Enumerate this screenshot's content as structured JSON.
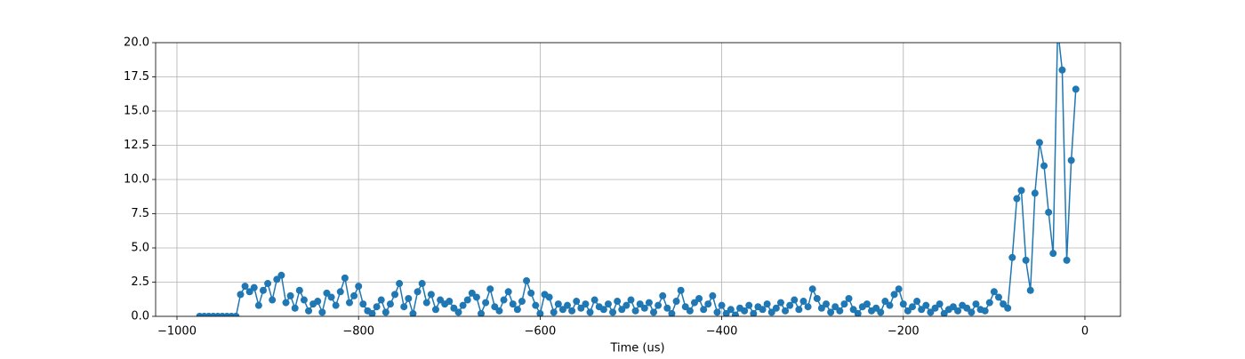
{
  "chart_data": {
    "type": "line",
    "xlabel": "Time (us)",
    "xlim": [
      -1023.5,
      39.2
    ],
    "ylim": [
      0,
      20
    ],
    "xticks": [
      {
        "value": -1000,
        "label": "−1000"
      },
      {
        "value": -800,
        "label": "−800"
      },
      {
        "value": -600,
        "label": "−600"
      },
      {
        "value": -400,
        "label": "−400"
      },
      {
        "value": -200,
        "label": "−200"
      },
      0
    ],
    "yticks": [
      {
        "value": 0,
        "label": "0.0"
      },
      {
        "value": 2.5,
        "label": "2.5"
      },
      {
        "value": 5,
        "label": "5.0"
      },
      {
        "value": 7.5,
        "label": "7.5"
      },
      {
        "value": 10,
        "label": "10.0"
      },
      {
        "value": 12.5,
        "label": "12.5"
      },
      {
        "value": 15,
        "label": "15.0"
      },
      {
        "value": 17.5,
        "label": "17.5"
      },
      {
        "value": 20,
        "label": "20.0"
      }
    ],
    "grid": true,
    "x": [
      -975,
      -970,
      -965,
      -960,
      -955,
      -950,
      -945,
      -940,
      -935,
      -930,
      -925,
      -920,
      -915,
      -910,
      -905,
      -900,
      -895,
      -890,
      -885,
      -880,
      -875,
      -870,
      -865,
      -860,
      -855,
      -850,
      -845,
      -840,
      -835,
      -830,
      -825,
      -820,
      -815,
      -810,
      -805,
      -800,
      -795,
      -790,
      -785,
      -780,
      -775,
      -770,
      -765,
      -760,
      -755,
      -750,
      -745,
      -740,
      -735,
      -730,
      -725,
      -720,
      -715,
      -710,
      -705,
      -700,
      -695,
      -690,
      -685,
      -680,
      -675,
      -670,
      -665,
      -660,
      -655,
      -650,
      -645,
      -640,
      -635,
      -630,
      -625,
      -620,
      -615,
      -610,
      -605,
      -600,
      -595,
      -590,
      -585,
      -580,
      -575,
      -570,
      -565,
      -560,
      -555,
      -550,
      -545,
      -540,
      -535,
      -530,
      -525,
      -520,
      -515,
      -510,
      -505,
      -500,
      -495,
      -490,
      -485,
      -480,
      -475,
      -470,
      -465,
      -460,
      -455,
      -450,
      -445,
      -440,
      -435,
      -430,
      -425,
      -420,
      -415,
      -410,
      -405,
      -400,
      -395,
      -390,
      -385,
      -380,
      -375,
      -370,
      -365,
      -360,
      -355,
      -350,
      -345,
      -340,
      -335,
      -330,
      -325,
      -320,
      -315,
      -310,
      -305,
      -300,
      -295,
      -290,
      -285,
      -280,
      -275,
      -270,
      -265,
      -260,
      -255,
      -250,
      -245,
      -240,
      -235,
      -230,
      -225,
      -220,
      -215,
      -210,
      -205,
      -200,
      -195,
      -190,
      -185,
      -180,
      -175,
      -170,
      -165,
      -160,
      -155,
      -150,
      -145,
      -140,
      -135,
      -130,
      -125,
      -120,
      -115,
      -110,
      -105,
      -100,
      -95,
      -90,
      -85,
      -80,
      -75,
      -70,
      -65,
      -60,
      -55,
      -50,
      -45,
      -40,
      -35,
      -30,
      -25,
      -20,
      -15,
      -10
    ],
    "series": [
      {
        "color": "#1f77b4",
        "values": [
          0,
          0,
          0,
          0,
          0,
          0,
          0,
          0,
          0,
          1.6,
          2.2,
          1.8,
          2.1,
          0.8,
          1.9,
          2.4,
          1.2,
          2.7,
          3.0,
          1.0,
          1.5,
          0.6,
          1.9,
          1.2,
          0.4,
          0.9,
          1.1,
          0.3,
          1.7,
          1.4,
          0.8,
          1.8,
          2.8,
          1.0,
          1.5,
          2.2,
          0.9,
          0.4,
          0.2,
          0.7,
          1.2,
          0.3,
          0.9,
          1.6,
          2.4,
          0.7,
          1.3,
          0.2,
          1.8,
          2.4,
          1.0,
          1.6,
          0.5,
          1.2,
          0.9,
          1.1,
          0.6,
          0.3,
          0.8,
          1.2,
          1.7,
          1.4,
          0.2,
          1.0,
          2.0,
          0.7,
          0.4,
          1.2,
          1.8,
          0.9,
          0.5,
          1.1,
          2.6,
          1.7,
          0.8,
          0.2,
          1.6,
          1.4,
          0.3,
          0.9,
          0.5,
          0.8,
          0.4,
          1.1,
          0.6,
          0.9,
          0.3,
          1.2,
          0.7,
          0.5,
          0.9,
          0.3,
          1.1,
          0.5,
          0.8,
          1.2,
          0.4,
          0.9,
          0.6,
          1.0,
          0.3,
          0.8,
          1.5,
          0.6,
          0.2,
          1.1,
          1.9,
          0.7,
          0.4,
          1.0,
          1.3,
          0.5,
          0.9,
          1.5,
          0.3,
          0.8,
          0.2,
          0.5,
          0.1,
          0.6,
          0.4,
          0.8,
          0.2,
          0.7,
          0.5,
          0.9,
          0.3,
          0.6,
          1.0,
          0.4,
          0.8,
          1.2,
          0.5,
          1.1,
          0.7,
          2.0,
          1.3,
          0.6,
          0.9,
          0.3,
          0.7,
          0.4,
          0.9,
          1.3,
          0.5,
          0.2,
          0.7,
          0.9,
          0.4,
          0.6,
          0.3,
          1.1,
          0.8,
          1.6,
          2.0,
          0.9,
          0.4,
          0.7,
          1.1,
          0.5,
          0.8,
          0.3,
          0.6,
          0.9,
          0.2,
          0.5,
          0.7,
          0.4,
          0.8,
          0.6,
          0.3,
          0.9,
          0.5,
          0.4,
          1.0,
          1.8,
          1.4,
          0.9,
          0.6,
          4.3,
          8.6,
          9.2,
          4.1,
          1.9,
          9.0,
          12.7,
          11.0,
          7.6,
          4.6,
          21.0,
          18.0,
          4.1,
          11.4,
          16.6
        ]
      }
    ]
  }
}
